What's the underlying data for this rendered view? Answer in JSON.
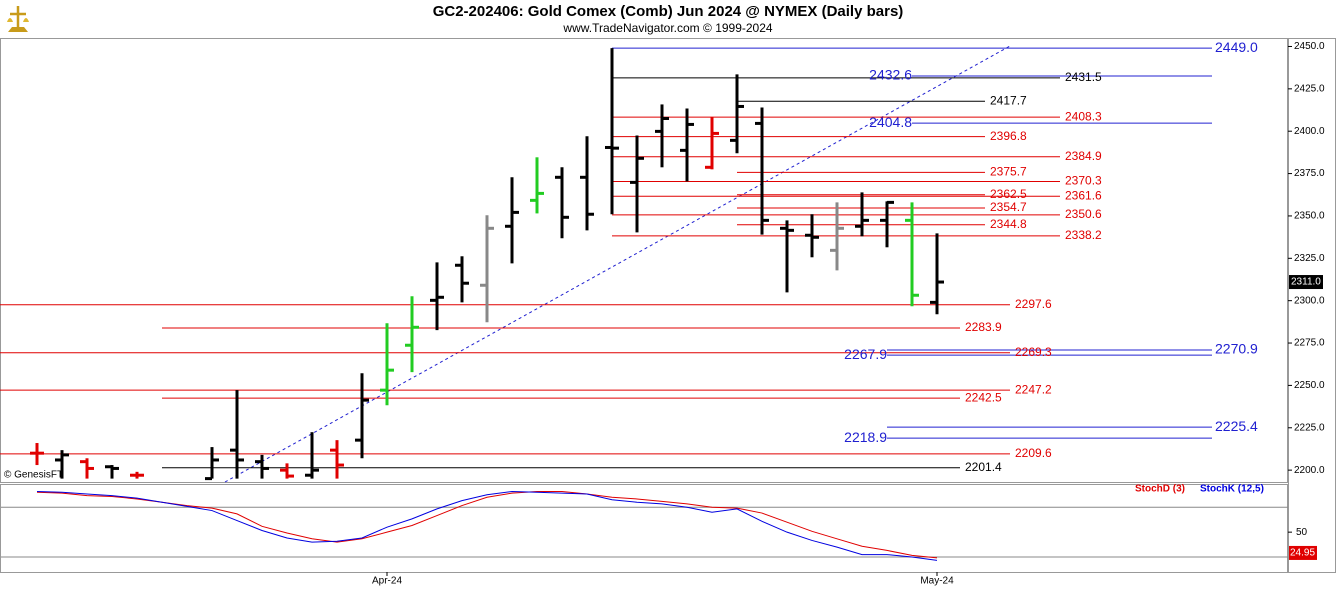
{
  "title": "GC2-202406:  Gold Comex (Comb) Jun 2024 @ NYMEX  (Daily bars)",
  "subtitle": "www.TradeNavigator.com © 1999-2024",
  "copyright": "© GenesisFT",
  "chart_data": [
    {
      "type": "ohlc",
      "categories": [
        null,
        null,
        null,
        null,
        null,
        null,
        null,
        null,
        null,
        null,
        null,
        null,
        null,
        null,
        "Apr-24",
        null,
        null,
        null,
        null,
        null,
        null,
        null,
        null,
        null,
        null,
        null,
        null,
        null,
        null,
        null,
        null,
        null,
        null,
        null,
        null,
        null,
        "May-24"
      ],
      "open": [
        2210,
        2206,
        2205,
        2202,
        2197,
        null,
        null,
        2195,
        2211.8,
        2205,
        2200,
        2197,
        2211.8,
        2217.7,
        2247.2,
        2273.7,
        2300.2,
        2320.9,
        2309.1,
        2343.9,
        2359.2,
        2372.8,
        2372.8,
        2390.4,
        2369.8,
        2399.9,
        2388.7,
        2378.7,
        2394.6,
        2404.6,
        2342.7,
        2338.6,
        2329.7,
        2343.9,
        2347.4,
        2347.4,
        2299
      ],
      "high": [
        2216,
        2211.8,
        2207,
        2203,
        2199,
        null,
        null,
        2213.6,
        2247.2,
        2209,
        2204,
        2222.4,
        2217.7,
        2257.2,
        2286.7,
        2302.6,
        2322.6,
        2326.2,
        2350.4,
        2372.8,
        2384.6,
        2378.7,
        2397,
        2449,
        2397.5,
        2415.8,
        2413.4,
        2408.3,
        2433.5,
        2414,
        2347.4,
        2351,
        2358,
        2363.9,
        2358.6,
        2358,
        2339.7
      ],
      "low": [
        2203,
        2195,
        2195,
        2195,
        2195,
        null,
        null,
        2195,
        2195,
        2195,
        2195,
        2195,
        2195,
        2207,
        2238.3,
        2257.8,
        2282.6,
        2299,
        2287.3,
        2322,
        2351.5,
        2336.8,
        2341.5,
        2351,
        2340.3,
        2378.7,
        2370.4,
        2377.5,
        2387,
        2339,
        2304.9,
        2325.6,
        2317.9,
        2338,
        2331.5,
        2296.7,
        2292
      ],
      "close": [
        2210,
        2209,
        2201,
        2201,
        2197,
        null,
        null,
        2206,
        2206,
        2201,
        2196.5,
        2200,
        2203,
        2241.3,
        2259,
        2284.3,
        2302,
        2310.3,
        2342.7,
        2352.1,
        2363.3,
        2349.2,
        2351,
        2390,
        2384,
        2407.5,
        2404,
        2398.7,
        2414.6,
        2347.4,
        2341.5,
        2337.4,
        2342.7,
        2347.4,
        2358,
        2303.2,
        2311
      ],
      "colors": [
        "#e00000",
        "#000000",
        "#e00000",
        "#000000",
        "#e00000",
        null,
        null,
        "#000000",
        "#000000",
        "#000000",
        "#e00000",
        "#000000",
        "#e00000",
        "#000000",
        "#22cc22",
        "#22cc22",
        "#000000",
        "#000000",
        "#888888",
        "#000000",
        "#22cc22",
        "#000000",
        "#000000",
        "#000000",
        "#000000",
        "#000000",
        "#000000",
        "#e00000",
        "#000000",
        "#000000",
        "#000000",
        "#000000",
        "#888888",
        "#000000",
        "#000000",
        "#22cc22",
        "#000000"
      ],
      "ylim": [
        2193,
        2455
      ],
      "yticks": [
        {
          "value": 2200,
          "label": "2200.0"
        },
        {
          "value": 2225,
          "label": "2225.0"
        },
        {
          "value": 2250,
          "label": "2250.0"
        },
        {
          "value": 2275,
          "label": "2275.0"
        },
        {
          "value": 2300,
          "label": "2300.0"
        },
        {
          "value": 2325,
          "label": "2325.0"
        },
        {
          "value": 2350,
          "label": "2350.0"
        },
        {
          "value": 2375,
          "label": "2375.0"
        },
        {
          "value": 2400,
          "label": "2400.0"
        },
        {
          "value": 2425,
          "label": "2425.0"
        },
        {
          "value": 2450,
          "label": "2450.0"
        }
      ],
      "last": {
        "value": 2311,
        "label": "2311.0"
      },
      "levels": [
        {
          "value": 2449,
          "label": "2449.0",
          "color": "#2020d0"
        },
        {
          "value": 2432.6,
          "label": "2432.6",
          "color": "#2020d0"
        },
        {
          "value": 2431.5,
          "label": "2431.5",
          "color": "#000000"
        },
        {
          "value": 2417.7,
          "label": "2417.7",
          "color": "#000000"
        },
        {
          "value": 2408.3,
          "label": "2408.3",
          "color": "#e00000"
        },
        {
          "value": 2404.8,
          "label": "2404.8",
          "color": "#2020d0"
        },
        {
          "value": 2396.8,
          "label": "2396.8",
          "color": "#e00000"
        },
        {
          "value": 2384.9,
          "label": "2384.9",
          "color": "#e00000"
        },
        {
          "value": 2375.7,
          "label": "2375.7",
          "color": "#e00000"
        },
        {
          "value": 2370.3,
          "label": "2370.3",
          "color": "#e00000"
        },
        {
          "value": 2362.5,
          "label": "2362.5",
          "color": "#e00000"
        },
        {
          "value": 2361.6,
          "label": "2361.6",
          "color": "#e00000"
        },
        {
          "value": 2354.7,
          "label": "2354.7",
          "color": "#e00000"
        },
        {
          "value": 2350.6,
          "label": "2350.6",
          "color": "#e00000"
        },
        {
          "value": 2344.8,
          "label": "2344.8",
          "color": "#e00000"
        },
        {
          "value": 2338.2,
          "label": "2338.2",
          "color": "#e00000"
        },
        {
          "value": 2297.6,
          "label": "2297.6",
          "color": "#e00000"
        },
        {
          "value": 2283.9,
          "label": "2283.9",
          "color": "#e00000"
        },
        {
          "value": 2270.9,
          "label": "2270.9",
          "color": "#2020d0"
        },
        {
          "value": 2269.3,
          "label": "2269.3",
          "color": "#e00000"
        },
        {
          "value": 2267.9,
          "label": "2267.9",
          "color": "#2020d0"
        },
        {
          "value": 2247.2,
          "label": "2247.2",
          "color": "#e00000"
        },
        {
          "value": 2242.5,
          "label": "2242.5",
          "color": "#e00000"
        },
        {
          "value": 2225.4,
          "label": "2225.4",
          "color": "#2020d0"
        },
        {
          "value": 2218.9,
          "label": "2218.9",
          "color": "#2020d0"
        },
        {
          "value": 2209.6,
          "label": "2209.6",
          "color": "#e00000"
        },
        {
          "value": 2201.4,
          "label": "2201.4",
          "color": "#000000"
        }
      ]
    },
    {
      "type": "line",
      "series": [
        {
          "name": "StochD (3)",
          "color": "#e00000",
          "values": [
            98,
            97,
            94,
            93,
            90,
            86,
            82,
            79,
            72,
            57,
            49,
            42,
            38,
            42,
            50,
            58,
            70,
            82,
            92,
            97,
            99,
            99,
            96,
            92,
            90,
            87,
            84,
            80,
            79,
            73,
            62,
            51,
            42,
            33,
            28,
            22,
            19
          ]
        },
        {
          "name": "StochK (12,5)",
          "color": "#0000e0",
          "values": [
            99,
            98,
            96,
            94,
            91,
            86,
            81,
            76,
            64,
            52,
            43,
            38,
            39,
            43,
            56,
            66,
            78,
            88,
            95,
            99,
            98,
            97,
            96,
            89,
            86,
            84,
            80,
            74,
            78,
            63,
            50,
            40,
            32,
            23,
            23,
            20,
            16
          ]
        }
      ],
      "ylim": [
        2,
        108
      ],
      "yticks": [
        50
      ],
      "guides": [
        20,
        80
      ],
      "last": {
        "value": 24.95,
        "label": "24.95"
      }
    }
  ]
}
